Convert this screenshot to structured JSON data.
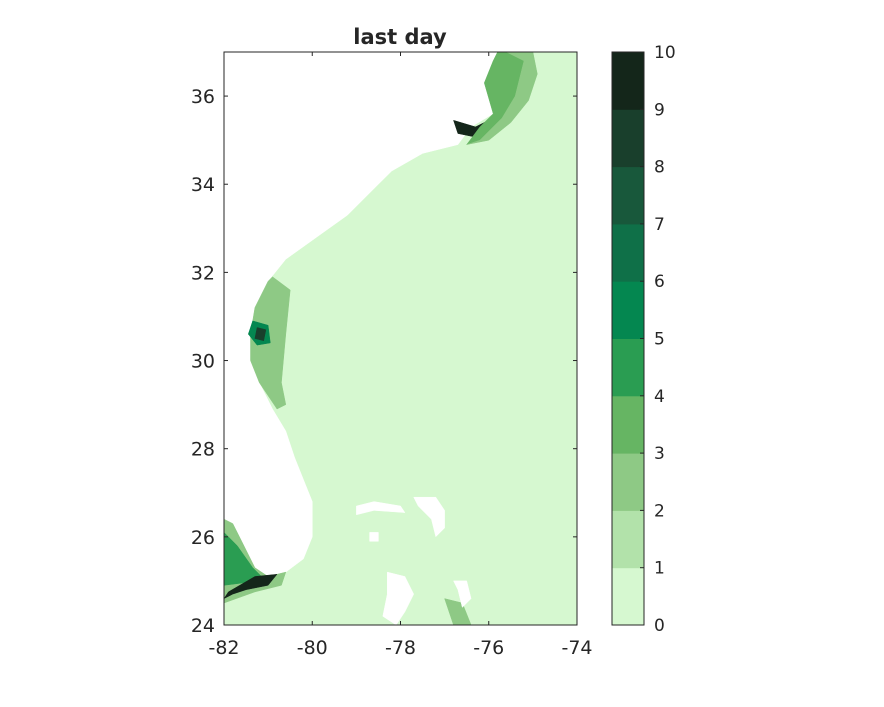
{
  "chart_data": {
    "type": "heatmap",
    "title": "last day",
    "xlabel": "",
    "ylabel": "",
    "xlim": [
      -82,
      -74
    ],
    "ylim": [
      24,
      37
    ],
    "x_ticks": [
      -82,
      -80,
      -78,
      -76,
      -74
    ],
    "y_ticks": [
      24,
      26,
      28,
      30,
      32,
      34,
      36
    ],
    "grid": false,
    "colorbar": {
      "placement": "right",
      "levels": [
        0,
        1,
        2,
        3,
        4,
        5,
        6,
        7,
        8,
        9,
        10
      ],
      "tick_labels": [
        "0",
        "1",
        "2",
        "3",
        "4",
        "5",
        "6",
        "7",
        "8",
        "9",
        "10"
      ],
      "colors": [
        "#d6f8d0",
        "#b2e2aa",
        "#8ec985",
        "#66b563",
        "#2a9d52",
        "#048750",
        "#0f7048",
        "#18583b",
        "#193f2c",
        "#14261a"
      ]
    },
    "background_level": 0,
    "regions": [
      {
        "name": "land-north-america",
        "fill": "land",
        "points": [
          [
            -82,
            37
          ],
          [
            -75.8,
            37
          ],
          [
            -75.9,
            36.8
          ],
          [
            -76.1,
            36.3
          ],
          [
            -75.9,
            35.6
          ],
          [
            -76.4,
            35.3
          ],
          [
            -76.7,
            34.9
          ],
          [
            -77.5,
            34.7
          ],
          [
            -78.2,
            34.3
          ],
          [
            -78.6,
            33.9
          ],
          [
            -79.2,
            33.3
          ],
          [
            -79.9,
            32.8
          ],
          [
            -80.6,
            32.3
          ],
          [
            -81.0,
            31.8
          ],
          [
            -81.3,
            31.2
          ],
          [
            -81.4,
            30.6
          ],
          [
            -81.4,
            30.0
          ],
          [
            -81.2,
            29.5
          ],
          [
            -80.9,
            28.9
          ],
          [
            -80.6,
            28.4
          ],
          [
            -80.4,
            27.8
          ],
          [
            -80.2,
            27.3
          ],
          [
            -80.0,
            26.8
          ],
          [
            -80.0,
            26.0
          ],
          [
            -80.2,
            25.5
          ],
          [
            -80.6,
            25.2
          ],
          [
            -81.0,
            25.1
          ],
          [
            -81.3,
            25.3
          ],
          [
            -81.6,
            25.9
          ],
          [
            -81.8,
            26.3
          ],
          [
            -82,
            26.4
          ]
        ]
      },
      {
        "name": "pamlico-sound-dark",
        "level": 9,
        "points": [
          [
            -76.8,
            35.45
          ],
          [
            -76.3,
            35.3
          ],
          [
            -75.9,
            35.5
          ],
          [
            -76.2,
            35.05
          ],
          [
            -76.7,
            35.15
          ]
        ]
      },
      {
        "name": "nc-shelf-l3",
        "level": 3,
        "points": [
          [
            -75.8,
            37
          ],
          [
            -75.6,
            37
          ],
          [
            -75.2,
            36.8
          ],
          [
            -75.4,
            36.0
          ],
          [
            -75.7,
            35.5
          ],
          [
            -76.2,
            35.0
          ],
          [
            -76.5,
            34.9
          ],
          [
            -76.2,
            35.3
          ],
          [
            -75.9,
            35.6
          ],
          [
            -76.1,
            36.3
          ],
          [
            -75.9,
            36.8
          ]
        ]
      },
      {
        "name": "nc-shelf-l2",
        "level": 2,
        "points": [
          [
            -75.6,
            37
          ],
          [
            -75.0,
            37
          ],
          [
            -74.9,
            36.5
          ],
          [
            -75.1,
            35.9
          ],
          [
            -75.5,
            35.4
          ],
          [
            -76.0,
            35.0
          ],
          [
            -76.5,
            34.9
          ],
          [
            -76.2,
            35.0
          ],
          [
            -75.7,
            35.5
          ],
          [
            -75.4,
            36.0
          ],
          [
            -75.2,
            36.8
          ]
        ]
      },
      {
        "name": "georgia-shelf-l2",
        "level": 2,
        "points": [
          [
            -80.9,
            31.9
          ],
          [
            -80.5,
            31.6
          ],
          [
            -80.6,
            30.6
          ],
          [
            -80.7,
            29.5
          ],
          [
            -80.6,
            29.0
          ],
          [
            -80.8,
            28.9
          ],
          [
            -81.2,
            29.5
          ],
          [
            -81.4,
            30.0
          ],
          [
            -81.4,
            30.6
          ],
          [
            -81.3,
            31.2
          ],
          [
            -81.0,
            31.8
          ]
        ]
      },
      {
        "name": "georgia-coast-l5",
        "level": 5,
        "points": [
          [
            -81.35,
            30.9
          ],
          [
            -81.0,
            30.8
          ],
          [
            -80.95,
            30.4
          ],
          [
            -81.25,
            30.35
          ],
          [
            -81.45,
            30.6
          ]
        ]
      },
      {
        "name": "georgia-coast-dark",
        "level": 8,
        "points": [
          [
            -81.25,
            30.75
          ],
          [
            -81.05,
            30.7
          ],
          [
            -81.1,
            30.45
          ],
          [
            -81.3,
            30.5
          ]
        ]
      },
      {
        "name": "south-florida-l2",
        "level": 2,
        "points": [
          [
            -82,
            26.4
          ],
          [
            -81.8,
            26.3
          ],
          [
            -81.6,
            25.9
          ],
          [
            -81.3,
            25.3
          ],
          [
            -81.0,
            25.1
          ],
          [
            -80.6,
            25.2
          ],
          [
            -80.7,
            24.9
          ],
          [
            -81.3,
            24.75
          ],
          [
            -82,
            24.5
          ]
        ]
      },
      {
        "name": "south-florida-l4",
        "level": 4,
        "points": [
          [
            -82,
            26.1
          ],
          [
            -81.7,
            25.8
          ],
          [
            -81.35,
            25.3
          ],
          [
            -81.1,
            25.05
          ],
          [
            -81.6,
            24.95
          ],
          [
            -82,
            24.9
          ]
        ]
      },
      {
        "name": "florida-bay-dark",
        "level": 9,
        "points": [
          [
            -81.3,
            25.1
          ],
          [
            -80.8,
            25.15
          ],
          [
            -81.0,
            24.9
          ],
          [
            -81.5,
            24.8
          ],
          [
            -81.8,
            24.7
          ],
          [
            -82,
            24.6
          ],
          [
            -81.9,
            24.75
          ]
        ]
      },
      {
        "name": "grand-bahama",
        "fill": "land",
        "points": [
          [
            -79.0,
            26.7
          ],
          [
            -78.6,
            26.8
          ],
          [
            -78.0,
            26.7
          ],
          [
            -77.9,
            26.55
          ],
          [
            -78.6,
            26.6
          ],
          [
            -79.0,
            26.5
          ]
        ]
      },
      {
        "name": "abaco",
        "fill": "land",
        "points": [
          [
            -77.7,
            26.9
          ],
          [
            -77.2,
            26.9
          ],
          [
            -77.0,
            26.6
          ],
          [
            -77.0,
            26.2
          ],
          [
            -77.2,
            26.0
          ],
          [
            -77.3,
            26.4
          ],
          [
            -77.6,
            26.7
          ]
        ]
      },
      {
        "name": "andros",
        "fill": "land",
        "points": [
          [
            -78.3,
            25.2
          ],
          [
            -77.9,
            25.1
          ],
          [
            -77.7,
            24.7
          ],
          [
            -77.9,
            24.3
          ],
          [
            -78.1,
            24.0
          ],
          [
            -78.4,
            24.2
          ],
          [
            -78.3,
            24.7
          ]
        ]
      },
      {
        "name": "bahama-bank-l2",
        "level": 2,
        "points": [
          [
            -77.0,
            24.6
          ],
          [
            -76.6,
            24.5
          ],
          [
            -76.4,
            24.0
          ],
          [
            -76.8,
            24.0
          ]
        ]
      },
      {
        "name": "eleuthera",
        "fill": "land",
        "points": [
          [
            -76.8,
            25.0
          ],
          [
            -76.5,
            25.0
          ],
          [
            -76.4,
            24.6
          ],
          [
            -76.6,
            24.4
          ],
          [
            -76.7,
            24.8
          ]
        ]
      },
      {
        "name": "cay-small",
        "fill": "land",
        "points": [
          [
            -78.7,
            26.1
          ],
          [
            -78.5,
            26.1
          ],
          [
            -78.5,
            25.9
          ],
          [
            -78.7,
            25.9
          ]
        ]
      }
    ]
  }
}
